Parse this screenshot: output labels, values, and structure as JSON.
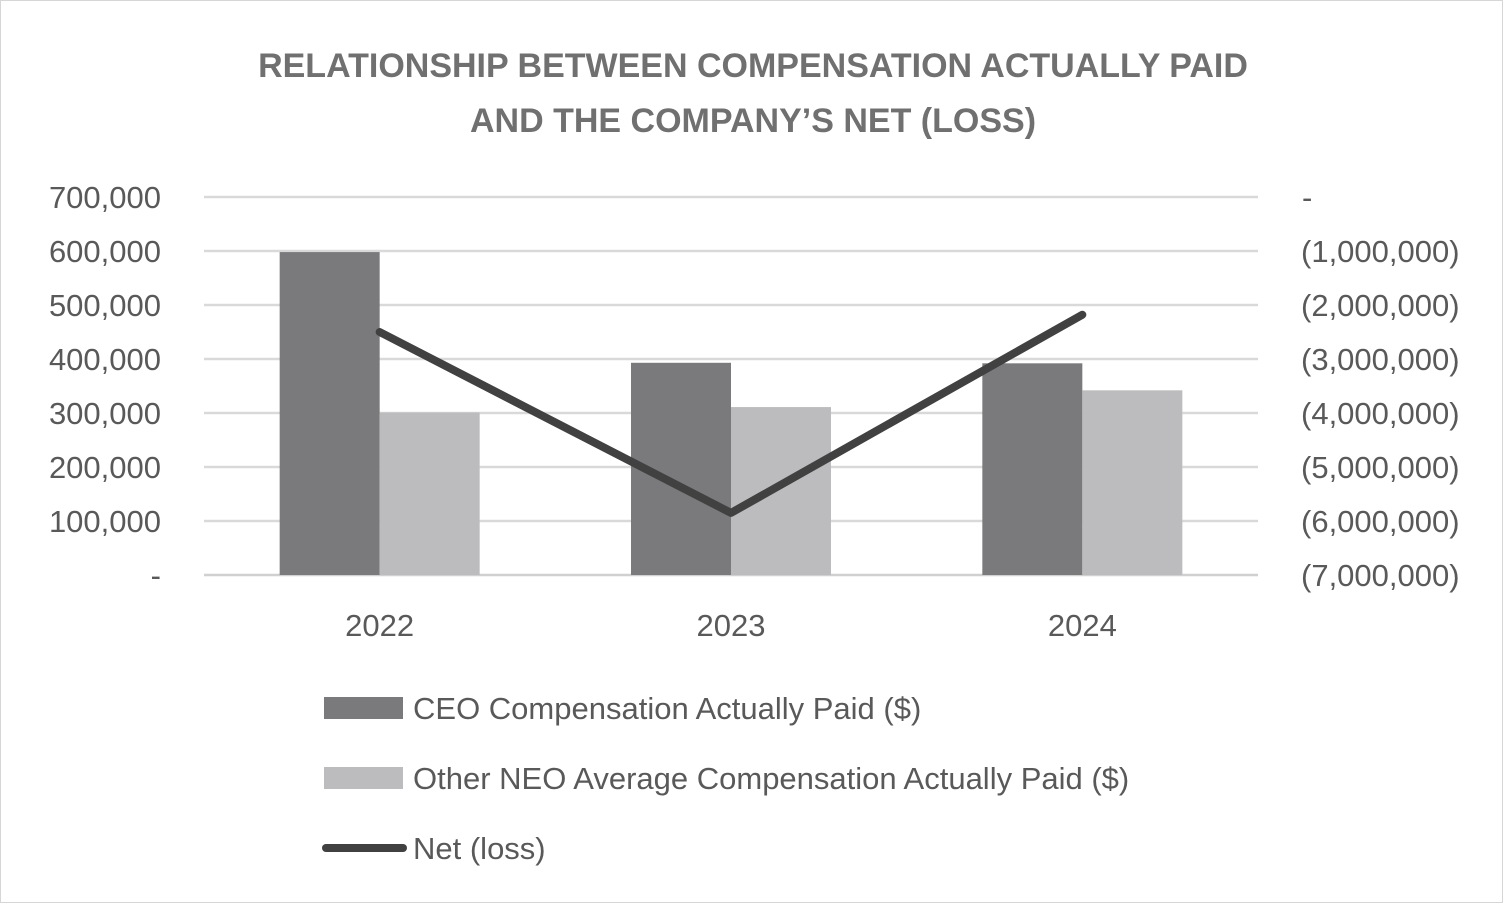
{
  "chart_data": {
    "type": "bar",
    "title": [
      "RELATIONSHIP BETWEEN COMPENSATION ACTUALLY PAID",
      "AND THE COMPANY’S NET (LOSS)"
    ],
    "categories": [
      "2022",
      "2023",
      "2024"
    ],
    "series": [
      {
        "name": "CEO Compensation Actually Paid ($)",
        "kind": "bar",
        "axis": "left",
        "color": "#7a7a7c",
        "values": [
          598000,
          393000,
          392000
        ]
      },
      {
        "name": "Other NEO Average Compensation Actually Paid ($)",
        "kind": "bar",
        "axis": "left",
        "color": "#bcbcbe",
        "values": [
          301000,
          311000,
          342000
        ]
      },
      {
        "name": "Net (loss)",
        "kind": "line",
        "axis": "right",
        "color": "#414141",
        "values": [
          -2500000,
          -5850000,
          -2180000
        ]
      }
    ],
    "y_left": {
      "ylim": [
        0,
        700000
      ],
      "ticks": [
        0,
        100000,
        200000,
        300000,
        400000,
        500000,
        600000,
        700000
      ],
      "tick_labels": [
        "-",
        "100,000",
        "200,000",
        "300,000",
        "400,000",
        "500,000",
        "600,000",
        "700,000"
      ]
    },
    "y_right": {
      "ylim": [
        -7000000,
        0
      ],
      "ticks": [
        0,
        -1000000,
        -2000000,
        -3000000,
        -4000000,
        -5000000,
        -6000000,
        -7000000
      ],
      "tick_labels": [
        "-",
        "(1,000,000)",
        "(2,000,000)",
        "(3,000,000)",
        "(4,000,000)",
        "(5,000,000)",
        "(6,000,000)",
        "(7,000,000)"
      ]
    },
    "grid": true,
    "legend_position": "bottom"
  }
}
